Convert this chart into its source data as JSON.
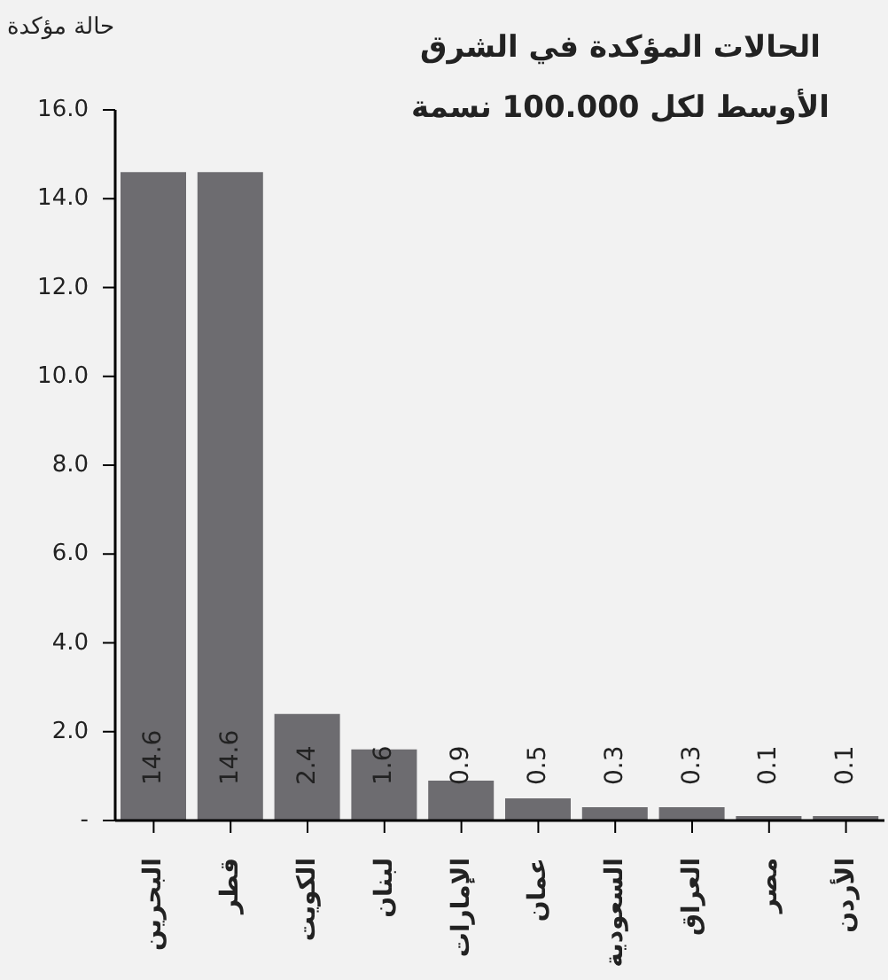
{
  "chart_data": {
    "type": "bar",
    "title": "الحالات المؤكدة في الشرق الأوسط لكل 100.000 نسمة",
    "ylabel": "حالة مؤكدة",
    "categories": [
      "البحرين",
      "قطر",
      "الكويت",
      "لبنان",
      "الإمارات",
      "عمان",
      "السعودية",
      "العراق",
      "مصر",
      "الأردن"
    ],
    "values": [
      14.6,
      14.6,
      2.4,
      1.6,
      0.9,
      0.5,
      0.3,
      0.3,
      0.1,
      0.1
    ],
    "color": "#6d6c70",
    "ylim": [
      0,
      16
    ],
    "yticks": [
      {
        "value": 0,
        "label": "-"
      },
      {
        "value": 2,
        "label": "2.0"
      },
      {
        "value": 4,
        "label": "4.0"
      },
      {
        "value": 6,
        "label": "6.0"
      },
      {
        "value": 8,
        "label": "8.0"
      },
      {
        "value": 10,
        "label": "10.0"
      },
      {
        "value": 12,
        "label": "12.0"
      },
      {
        "value": 14,
        "label": "14.0"
      },
      {
        "value": 16,
        "label": "16.0"
      }
    ],
    "data_labels": true,
    "grid": false,
    "legend": false
  }
}
